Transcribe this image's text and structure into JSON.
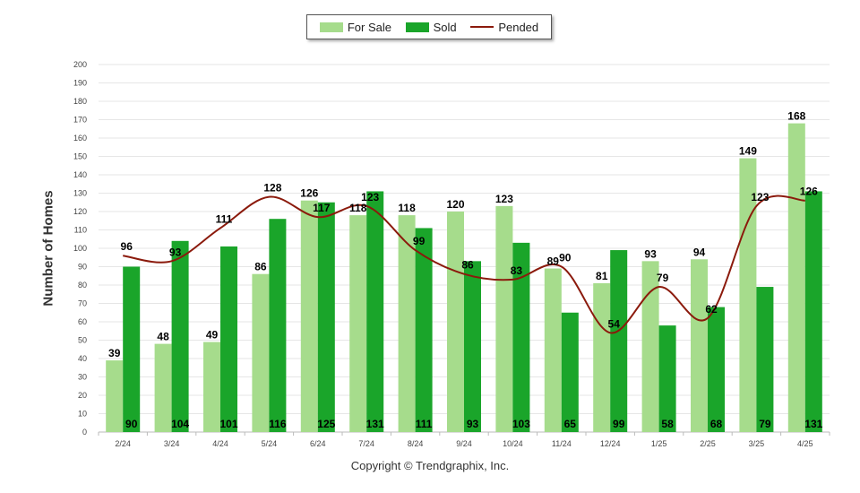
{
  "chart_data": {
    "type": "bar",
    "categories": [
      "2/24",
      "3/24",
      "4/24",
      "5/24",
      "6/24",
      "7/24",
      "8/24",
      "9/24",
      "10/24",
      "11/24",
      "12/24",
      "1/25",
      "2/25",
      "3/25",
      "4/25"
    ],
    "series": [
      {
        "name": "For Sale",
        "type": "bar",
        "color": "#a6dc8c",
        "values": [
          39,
          48,
          49,
          86,
          126,
          118,
          118,
          120,
          123,
          89,
          81,
          93,
          94,
          149,
          168
        ]
      },
      {
        "name": "Sold",
        "type": "bar",
        "color": "#1aa52a",
        "values": [
          90,
          104,
          101,
          116,
          125,
          131,
          111,
          93,
          103,
          65,
          99,
          58,
          68,
          79,
          131
        ]
      },
      {
        "name": "Pended",
        "type": "line",
        "color": "#8b1a0c",
        "values": [
          96,
          93,
          111,
          128,
          117,
          123,
          99,
          86,
          83,
          90,
          54,
          79,
          62,
          123,
          126
        ]
      }
    ],
    "title": "",
    "xlabel": "",
    "ylabel": "Number of Homes",
    "ylim": [
      0,
      200
    ],
    "yticks": [
      0,
      10,
      20,
      30,
      40,
      50,
      60,
      70,
      80,
      90,
      100,
      110,
      120,
      130,
      140,
      150,
      160,
      170,
      180,
      190,
      200
    ],
    "grid": true,
    "legend": "top-center"
  },
  "legend": {
    "for_sale": "For Sale",
    "sold": "Sold",
    "pended": "Pended"
  },
  "footer": {
    "copyright": "Copyright © Trendgraphix, Inc."
  }
}
